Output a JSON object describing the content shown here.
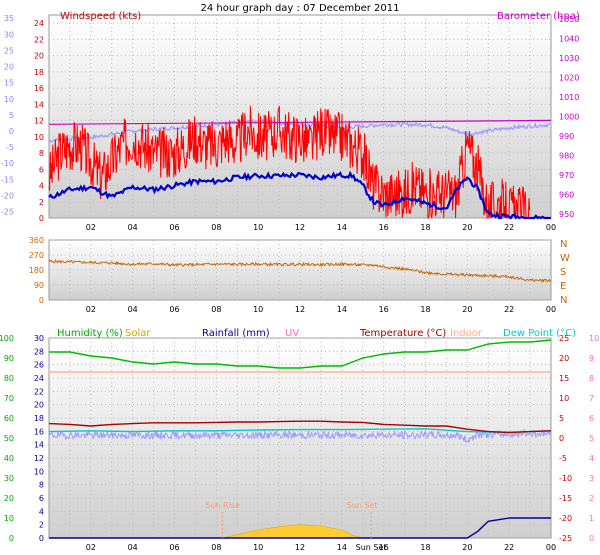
{
  "title": "24 hour graph day : 07 December 2011",
  "colors": {
    "windspeed": "#ff0000",
    "avg_wind": "#0000cc",
    "temp_grey": "#9999ff",
    "barometer": "#cc00cc",
    "direction": "#cc6600",
    "humidity": "#00bb00",
    "solar": "#ccaa00",
    "rainfall": "#000099",
    "uv": "#ff66cc",
    "temperature": "#aa0000",
    "indoor": "#ffaa88",
    "dewpoint": "#00cccc",
    "sun_markers": "#ff9966"
  },
  "chart_data": [
    {
      "type": "line",
      "panel": "wind-barometer",
      "x_ticks": [
        "02",
        "04",
        "06",
        "08",
        "10",
        "12",
        "14",
        "16",
        "18",
        "20",
        "22",
        "00"
      ],
      "legend": {
        "left": "Windspeed (kts)",
        "right": "Barometer (hpa)"
      },
      "y_left_outer_ticks": [
        "35",
        "30",
        "25",
        "20",
        "15",
        "10",
        "5",
        "0",
        "-5",
        "-10",
        "-15",
        "-20",
        "-25"
      ],
      "y_left_ticks": [
        "24",
        "22",
        "20",
        "18",
        "16",
        "14",
        "12",
        "10",
        "8",
        "6",
        "4",
        "2",
        "0"
      ],
      "y_right_ticks": [
        "1050",
        "1040",
        "1030",
        "1020",
        "1010",
        "1000",
        "990",
        "980",
        "970",
        "960",
        "950"
      ],
      "xlim": [
        0,
        24
      ],
      "ylim_wind": [
        0,
        25
      ],
      "ylim_baro": [
        948,
        1052
      ],
      "ylim_outer": [
        -27,
        36
      ],
      "series": [
        {
          "name": "Windspeed (kts)",
          "x": [
            0,
            0.5,
            1,
            1.5,
            2,
            2.5,
            3,
            3.5,
            4,
            4.5,
            5,
            5.5,
            6,
            6.5,
            7,
            7.5,
            8,
            8.5,
            9,
            9.5,
            10,
            10.5,
            11,
            11.5,
            12,
            12.5,
            13,
            13.5,
            14,
            14.5,
            15,
            15.5,
            16,
            16.5,
            17,
            17.5,
            18,
            18.5,
            19,
            19.5,
            20,
            20.5,
            21,
            21.5,
            22,
            22.5,
            23
          ],
          "values": [
            5,
            8,
            9,
            9,
            7,
            5,
            7,
            9,
            10,
            9,
            8,
            8,
            8,
            9,
            10,
            9,
            9,
            10,
            9,
            11,
            10,
            10,
            11,
            10,
            10,
            9,
            11,
            10,
            10,
            9,
            8,
            4,
            3,
            3,
            3,
            4,
            3,
            3,
            3,
            3,
            9,
            6,
            1,
            2,
            1,
            1,
            0
          ]
        },
        {
          "name": "Average wind",
          "x": [
            0,
            1,
            2,
            3,
            4,
            5,
            6,
            7,
            8,
            9,
            10,
            11,
            12,
            13,
            14,
            14.5,
            15,
            15.5,
            16,
            17,
            18,
            19,
            19.5,
            20,
            20.5,
            21,
            21.5,
            22,
            23,
            24
          ],
          "values": [
            2.5,
            3.5,
            3.8,
            2.6,
            3.8,
            3.5,
            4,
            4.5,
            4.5,
            5,
            5.2,
            5.2,
            5.3,
            5,
            5.3,
            5.2,
            4,
            2,
            1.5,
            2.5,
            1.8,
            1.2,
            3.5,
            5,
            3.5,
            0.5,
            0.3,
            0.2,
            0,
            0
          ]
        },
        {
          "name": "Barometer (hpa)",
          "x": [
            0,
            24
          ],
          "values": [
            996,
            998
          ]
        },
        {
          "name": "Temperature trace",
          "x": [
            0,
            2,
            4,
            6,
            8,
            10,
            12,
            14,
            16,
            18,
            19,
            20,
            21,
            22,
            24
          ],
          "values": [
            -3,
            -2,
            0,
            1,
            2,
            3,
            2,
            1,
            2,
            2,
            1,
            -1,
            0,
            1,
            2
          ]
        }
      ]
    },
    {
      "type": "line",
      "panel": "wind-direction",
      "x_ticks": [
        "02",
        "04",
        "06",
        "08",
        "10",
        "12",
        "14",
        "16",
        "18",
        "20",
        "22",
        "00"
      ],
      "y_ticks": [
        "360",
        "270",
        "180",
        "90",
        "0"
      ],
      "y_right_ticks": [
        "N",
        "W",
        "S",
        "E",
        "N"
      ],
      "xlim": [
        0,
        24
      ],
      "ylim": [
        0,
        360
      ],
      "series": [
        {
          "name": "Wind direction",
          "x": [
            0,
            1,
            2,
            3,
            4,
            5,
            6,
            7,
            8,
            9,
            10,
            11,
            12,
            13,
            14,
            15,
            15.5,
            16,
            17,
            18,
            19,
            20,
            21,
            22,
            23,
            24
          ],
          "values": [
            232,
            228,
            225,
            222,
            215,
            218,
            210,
            212,
            215,
            214,
            215,
            213,
            214,
            212,
            215,
            210,
            210,
            200,
            185,
            165,
            155,
            150,
            145,
            140,
            118,
            118
          ]
        }
      ]
    },
    {
      "type": "line",
      "panel": "humidity-temperature",
      "x_ticks": [
        "02",
        "04",
        "06",
        "08",
        "10",
        "12",
        "14",
        "Sun Set",
        "16",
        "18",
        "20",
        "22",
        "00"
      ],
      "legend": [
        "Humidity (%)",
        "Solar",
        "Rainfall (mm)",
        "UV",
        "Temperature (°C)",
        "Indoor",
        "Dew Point (°C)"
      ],
      "y_humidity_ticks": [
        "100",
        "90",
        "80",
        "70",
        "60",
        "50",
        "40",
        "30",
        "20",
        "10",
        "0"
      ],
      "y_rain_ticks": [
        "30",
        "28",
        "26",
        "24",
        "22",
        "20",
        "18",
        "16",
        "14",
        "12",
        "10",
        "8",
        "6",
        "4",
        "2",
        "0"
      ],
      "y_temp_ticks": [
        "25",
        "20",
        "15",
        "10",
        "5",
        "0",
        "-5",
        "-10",
        "-15",
        "-20",
        "-25"
      ],
      "y_uv_ticks": [
        "10",
        "9",
        "8",
        "7",
        "6",
        "5",
        "4",
        "3",
        "2",
        "1",
        "0"
      ],
      "annotations": [
        "Sun Rise",
        "Sun Set"
      ],
      "xlim": [
        0,
        24
      ],
      "series": [
        {
          "name": "Humidity (%)",
          "x": [
            0,
            1,
            2,
            3,
            4,
            5,
            6,
            7,
            8,
            9,
            10,
            11,
            12,
            13,
            14,
            15,
            16,
            17,
            18,
            19,
            20,
            21,
            22,
            23,
            24
          ],
          "values": [
            93,
            93,
            91,
            90,
            88,
            87,
            88,
            87,
            87,
            86,
            86,
            85,
            85,
            86,
            86,
            90,
            92,
            93,
            93,
            94,
            94,
            97,
            98,
            98,
            99
          ]
        },
        {
          "name": "Temperature (°C)",
          "x": [
            0,
            1,
            2,
            3,
            4,
            5,
            6,
            7,
            8,
            9,
            10,
            11,
            12,
            13,
            14,
            15,
            16,
            17,
            18,
            19,
            20,
            21,
            22,
            23,
            24
          ],
          "values": [
            3.6,
            3.4,
            3.0,
            3.4,
            3.6,
            3.8,
            3.8,
            3.8,
            3.9,
            4.0,
            4.0,
            4.1,
            4.2,
            4.2,
            4.0,
            3.9,
            3.4,
            3.2,
            3.0,
            3.0,
            2.2,
            1.6,
            1.4,
            1.6,
            1.8
          ]
        },
        {
          "name": "Dew Point (°C)",
          "x": [
            0,
            2,
            4,
            6,
            8,
            10,
            12,
            14,
            16,
            18,
            20,
            22,
            24
          ],
          "values": [
            1.6,
            1.8,
            1.6,
            1.8,
            1.8,
            2.0,
            2.1,
            2.1,
            2.2,
            2.3,
            1.6,
            1.4,
            1.8
          ]
        },
        {
          "name": "Indoor",
          "x": [
            0,
            4,
            8,
            12,
            16,
            20,
            24
          ],
          "values": [
            83,
            83,
            83,
            83,
            83,
            83,
            83
          ]
        },
        {
          "name": "Rainfall (mm)",
          "x": [
            0,
            20,
            20.5,
            21,
            22,
            23,
            24
          ],
          "values": [
            0,
            0,
            1,
            2.5,
            3,
            3,
            3
          ]
        },
        {
          "name": "Solar",
          "x": [
            8.3,
            9,
            10,
            11,
            12,
            13,
            14,
            14.5,
            15
          ],
          "values": [
            0,
            0.5,
            1.2,
            1.7,
            2,
            1.8,
            1.2,
            0.4,
            0
          ]
        }
      ]
    }
  ]
}
